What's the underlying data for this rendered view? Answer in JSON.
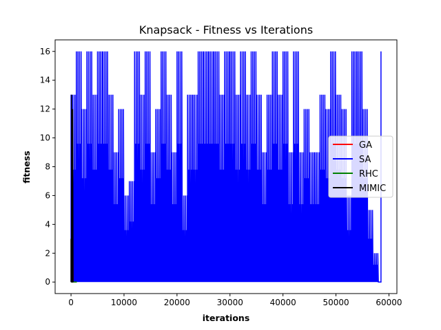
{
  "chart_data": {
    "type": "line",
    "title": "Knapsack - Fitness vs Iterations",
    "xlabel": "iterations",
    "ylabel": "fitness",
    "xlim": [
      -3000,
      61500
    ],
    "ylim": [
      -0.8,
      16.8
    ],
    "xticks": [
      0,
      10000,
      20000,
      30000,
      40000,
      50000,
      60000
    ],
    "xtick_labels": [
      "0",
      "10000",
      "20000",
      "30000",
      "40000",
      "50000",
      "60000"
    ],
    "yticks": [
      0,
      2,
      4,
      6,
      8,
      10,
      12,
      14,
      16
    ],
    "ytick_labels": [
      "0",
      "2",
      "4",
      "6",
      "8",
      "10",
      "12",
      "14",
      "16"
    ],
    "grid": false,
    "legend_position": "center-right",
    "series": [
      {
        "name": "GA",
        "color": "#ff0000",
        "x": [
          0,
          200,
          400,
          700,
          1000
        ],
        "y": [
          0,
          9,
          0,
          0,
          0
        ]
      },
      {
        "name": "SA",
        "color": "#0000ff",
        "x": [
          0,
          1000,
          2000,
          3000,
          4000,
          5000,
          6000,
          7000,
          8000,
          9000,
          10000,
          11000,
          12000,
          13000,
          14000,
          15000,
          16000,
          17000,
          18000,
          19000,
          20000,
          21000,
          22000,
          23000,
          24000,
          25000,
          26000,
          27000,
          28000,
          29000,
          30000,
          31000,
          32000,
          33000,
          34000,
          35000,
          36000,
          37000,
          38000,
          39000,
          40000,
          41000,
          42000,
          43000,
          44000,
          45000,
          46000,
          47000,
          48000,
          49000,
          50000,
          51000,
          52000,
          53000,
          54000,
          55000,
          56000,
          57000,
          58000,
          58500
        ],
        "y": [
          13,
          16,
          12,
          16,
          13,
          16,
          16,
          13,
          9,
          12,
          6,
          7,
          16,
          13,
          16,
          9,
          12,
          16,
          13,
          9,
          16,
          6,
          13,
          13,
          16,
          16,
          16,
          16,
          13,
          16,
          16,
          13,
          16,
          13,
          16,
          13,
          9,
          13,
          16,
          13,
          16,
          9,
          16,
          9,
          12,
          9,
          9,
          13,
          12,
          16,
          13,
          12,
          6,
          16,
          16,
          12,
          5,
          2,
          0,
          16
        ]
      },
      {
        "name": "RHC",
        "color": "#008000",
        "x": [
          0,
          200,
          500,
          800,
          1100
        ],
        "y": [
          0,
          0,
          0,
          0,
          0
        ]
      },
      {
        "name": "MIMIC",
        "color": "#000000",
        "x": [
          0,
          100,
          200,
          300,
          400
        ],
        "y": [
          3,
          13,
          0,
          12,
          0
        ]
      }
    ]
  }
}
